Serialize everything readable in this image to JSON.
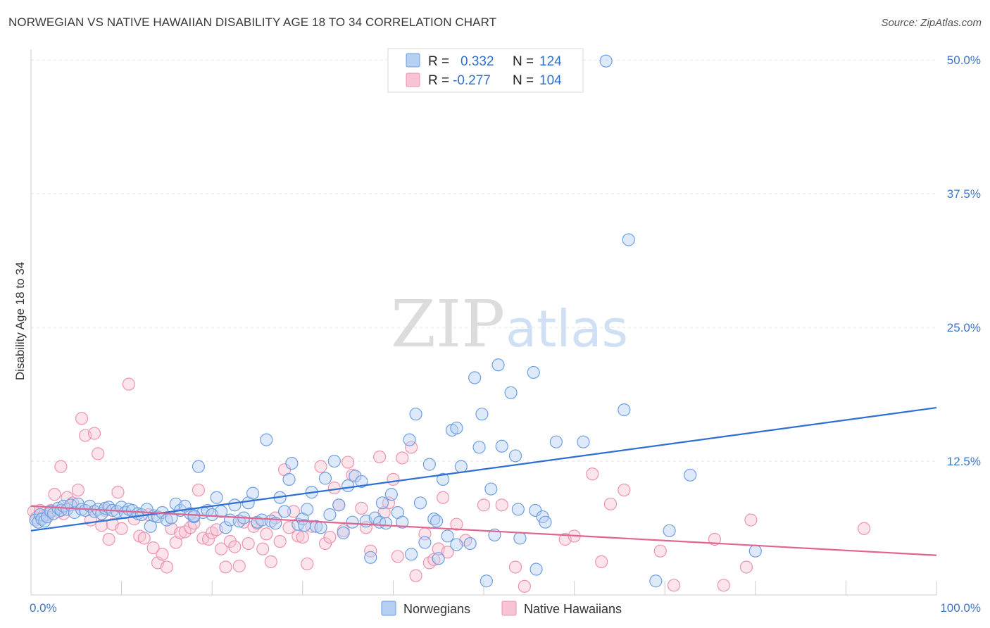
{
  "title": "NORWEGIAN VS NATIVE HAWAIIAN DISABILITY AGE 18 TO 34 CORRELATION CHART",
  "source": "Source: ZipAtlas.com",
  "watermark": {
    "zip": "ZIP",
    "atlas": "atlas"
  },
  "colors": {
    "blue_fill": "#b6d0f3",
    "blue_stroke": "#6e9fe0",
    "blue_line": "#2e6fd4",
    "pink_fill": "#f8c3d3",
    "pink_stroke": "#ec93b1",
    "pink_line": "#e0648f",
    "tick_text": "#3d76c9",
    "grid": "#e3e3e3"
  },
  "chart_data": {
    "type": "scatter",
    "title": "NORWEGIAN VS NATIVE HAWAIIAN DISABILITY AGE 18 TO 34 CORRELATION CHART",
    "xlabel": "",
    "ylabel": "Disability Age 18 to 34",
    "xlim": [
      0,
      100
    ],
    "ylim": [
      0,
      51
    ],
    "x_tick_labels": [
      "0.0%",
      "100.0%"
    ],
    "y_ticks": [
      12.5,
      25.0,
      37.5,
      50.0
    ],
    "y_tick_labels": [
      "12.5%",
      "25.0%",
      "37.5%",
      "50.0%"
    ],
    "grid": true,
    "legend_position": "top-center",
    "legend": [
      {
        "r_label": "R =",
        "r_value": "0.332",
        "n_label": "N =",
        "n_value": "124"
      },
      {
        "r_label": "R =",
        "r_value": "-0.277",
        "n_label": "N =",
        "n_value": "104"
      }
    ],
    "series": [
      {
        "name": "Norwegians",
        "color": "#b6d0f3",
        "trend": {
          "x": [
            0,
            100
          ],
          "y": [
            6.0,
            17.5
          ]
        },
        "points": [
          [
            0.5,
            7.0
          ],
          [
            0.8,
            6.8
          ],
          [
            1.0,
            7.5
          ],
          [
            1.2,
            7.1
          ],
          [
            1.5,
            6.9
          ],
          [
            1.8,
            7.3
          ],
          [
            2.2,
            7.8
          ],
          [
            2.5,
            7.6
          ],
          [
            3.0,
            8.1
          ],
          [
            3.3,
            7.9
          ],
          [
            3.6,
            8.3
          ],
          [
            4.0,
            8.0
          ],
          [
            4.4,
            8.4
          ],
          [
            4.8,
            7.7
          ],
          [
            5.2,
            8.5
          ],
          [
            5.6,
            8.0
          ],
          [
            6.0,
            7.9
          ],
          [
            6.5,
            8.3
          ],
          [
            7.0,
            7.8
          ],
          [
            7.4,
            8.0
          ],
          [
            7.8,
            7.6
          ],
          [
            8.2,
            8.1
          ],
          [
            8.6,
            8.2
          ],
          [
            9.0,
            7.9
          ],
          [
            9.5,
            7.8
          ],
          [
            10.0,
            8.2
          ],
          [
            10.4,
            7.7
          ],
          [
            10.8,
            8.0
          ],
          [
            11.2,
            7.9
          ],
          [
            11.8,
            7.6
          ],
          [
            12.2,
            7.5
          ],
          [
            12.8,
            8.0
          ],
          [
            13.2,
            6.4
          ],
          [
            13.6,
            7.4
          ],
          [
            14.0,
            7.3
          ],
          [
            14.5,
            7.7
          ],
          [
            15.0,
            7.0
          ],
          [
            15.5,
            7.2
          ],
          [
            16.0,
            8.5
          ],
          [
            16.5,
            7.9
          ],
          [
            17.0,
            8.3
          ],
          [
            17.6,
            7.6
          ],
          [
            18.0,
            7.3
          ],
          [
            18.5,
            12.0
          ],
          [
            19.0,
            7.7
          ],
          [
            19.5,
            7.9
          ],
          [
            20.0,
            7.5
          ],
          [
            20.5,
            9.1
          ],
          [
            21.0,
            7.8
          ],
          [
            21.5,
            6.3
          ],
          [
            22.0,
            7.0
          ],
          [
            22.5,
            8.4
          ],
          [
            23.0,
            6.9
          ],
          [
            23.5,
            7.2
          ],
          [
            24.0,
            8.6
          ],
          [
            24.5,
            9.5
          ],
          [
            25.0,
            6.8
          ],
          [
            25.5,
            7.0
          ],
          [
            26.0,
            14.5
          ],
          [
            26.5,
            6.9
          ],
          [
            27.0,
            6.7
          ],
          [
            27.5,
            9.1
          ],
          [
            28.0,
            7.8
          ],
          [
            28.5,
            10.8
          ],
          [
            28.8,
            12.3
          ],
          [
            29.5,
            6.6
          ],
          [
            30.0,
            7.1
          ],
          [
            30.5,
            8.0
          ],
          [
            31.0,
            9.6
          ],
          [
            31.5,
            6.4
          ],
          [
            32.0,
            6.3
          ],
          [
            32.5,
            10.9
          ],
          [
            33.0,
            7.5
          ],
          [
            33.5,
            12.5
          ],
          [
            34.0,
            8.4
          ],
          [
            34.5,
            5.8
          ],
          [
            35.0,
            10.2
          ],
          [
            35.5,
            6.8
          ],
          [
            35.8,
            11.1
          ],
          [
            36.5,
            10.6
          ],
          [
            37.0,
            6.9
          ],
          [
            37.5,
            3.5
          ],
          [
            38.0,
            7.2
          ],
          [
            38.5,
            6.8
          ],
          [
            38.8,
            8.6
          ],
          [
            39.2,
            6.7
          ],
          [
            39.8,
            9.4
          ],
          [
            40.5,
            7.7
          ],
          [
            41.0,
            6.8
          ],
          [
            41.8,
            14.5
          ],
          [
            42.0,
            3.8
          ],
          [
            42.5,
            16.9
          ],
          [
            43.0,
            8.6
          ],
          [
            43.5,
            4.9
          ],
          [
            44.0,
            12.2
          ],
          [
            44.5,
            7.1
          ],
          [
            45.0,
            3.4
          ],
          [
            45.5,
            10.8
          ],
          [
            46.0,
            5.5
          ],
          [
            46.5,
            15.4
          ],
          [
            47.0,
            15.6
          ],
          [
            47.5,
            12.0
          ],
          [
            47.0,
            4.7
          ],
          [
            48.5,
            4.8
          ],
          [
            49.0,
            20.3
          ],
          [
            49.5,
            13.8
          ],
          [
            49.8,
            16.9
          ],
          [
            50.3,
            1.3
          ],
          [
            50.8,
            9.9
          ],
          [
            51.2,
            5.6
          ],
          [
            51.6,
            21.5
          ],
          [
            52.0,
            13.9
          ],
          [
            53.0,
            18.9
          ],
          [
            53.5,
            13.0
          ],
          [
            53.8,
            8.0
          ],
          [
            54.0,
            5.3
          ],
          [
            55.5,
            20.8
          ],
          [
            55.8,
            2.4
          ],
          [
            55.7,
            7.9
          ],
          [
            56.5,
            7.3
          ],
          [
            56.8,
            6.8
          ],
          [
            58.0,
            14.3
          ],
          [
            61.0,
            14.3
          ],
          [
            65.5,
            17.3
          ],
          [
            66.0,
            33.2
          ],
          [
            69.0,
            1.3
          ],
          [
            70.5,
            6.0
          ],
          [
            72.8,
            11.2
          ],
          [
            80.0,
            4.1
          ],
          [
            60.0,
            50.0
          ],
          [
            63.5,
            49.9
          ],
          [
            18.0,
            7.4
          ],
          [
            30.2,
            6.5
          ],
          [
            44.8,
            6.9
          ]
        ]
      },
      {
        "name": "Native Hawaiians",
        "color": "#f8c3d3",
        "trend": {
          "x": [
            0,
            100
          ],
          "y": [
            8.3,
            3.7
          ]
        },
        "points": [
          [
            0.3,
            7.8
          ],
          [
            0.6,
            7.2
          ],
          [
            1.0,
            7.9
          ],
          [
            1.4,
            7.4
          ],
          [
            1.8,
            7.5
          ],
          [
            2.2,
            7.9
          ],
          [
            2.6,
            9.4
          ],
          [
            3.0,
            7.8
          ],
          [
            3.3,
            12.0
          ],
          [
            3.6,
            7.6
          ],
          [
            4.0,
            9.1
          ],
          [
            4.6,
            8.6
          ],
          [
            5.2,
            9.8
          ],
          [
            5.6,
            16.5
          ],
          [
            6.0,
            14.9
          ],
          [
            6.6,
            7.0
          ],
          [
            7.0,
            15.1
          ],
          [
            7.4,
            13.2
          ],
          [
            7.8,
            6.5
          ],
          [
            8.2,
            7.9
          ],
          [
            8.6,
            5.2
          ],
          [
            9.0,
            6.6
          ],
          [
            9.6,
            9.6
          ],
          [
            10.0,
            6.2
          ],
          [
            10.8,
            19.7
          ],
          [
            11.4,
            7.1
          ],
          [
            12.0,
            5.5
          ],
          [
            12.5,
            5.3
          ],
          [
            13.0,
            7.5
          ],
          [
            13.5,
            4.4
          ],
          [
            14.0,
            3.0
          ],
          [
            14.5,
            3.8
          ],
          [
            15.0,
            2.6
          ],
          [
            15.5,
            6.2
          ],
          [
            16.0,
            4.9
          ],
          [
            16.5,
            5.8
          ],
          [
            17.0,
            5.9
          ],
          [
            17.6,
            6.3
          ],
          [
            18.0,
            6.7
          ],
          [
            18.5,
            9.8
          ],
          [
            19.0,
            5.3
          ],
          [
            19.6,
            5.2
          ],
          [
            20.0,
            5.8
          ],
          [
            20.5,
            6.1
          ],
          [
            21.0,
            4.3
          ],
          [
            21.5,
            2.6
          ],
          [
            22.0,
            5.0
          ],
          [
            22.5,
            4.5
          ],
          [
            23.0,
            2.7
          ],
          [
            23.5,
            6.8
          ],
          [
            24.0,
            4.8
          ],
          [
            24.6,
            6.4
          ],
          [
            25.0,
            6.7
          ],
          [
            25.6,
            4.3
          ],
          [
            26.0,
            5.7
          ],
          [
            26.5,
            3.1
          ],
          [
            27.0,
            7.2
          ],
          [
            27.5,
            5.0
          ],
          [
            28.0,
            11.7
          ],
          [
            28.5,
            6.3
          ],
          [
            29.0,
            7.8
          ],
          [
            29.5,
            5.5
          ],
          [
            30.0,
            5.4
          ],
          [
            30.5,
            2.9
          ],
          [
            31.0,
            6.4
          ],
          [
            32.0,
            12.0
          ],
          [
            32.5,
            4.8
          ],
          [
            33.0,
            5.4
          ],
          [
            33.5,
            10.0
          ],
          [
            34.0,
            8.4
          ],
          [
            34.5,
            6.0
          ],
          [
            35.0,
            12.4
          ],
          [
            35.5,
            11.2
          ],
          [
            36.5,
            8.1
          ],
          [
            37.0,
            6.3
          ],
          [
            37.5,
            4.1
          ],
          [
            38.5,
            12.9
          ],
          [
            39.0,
            7.7
          ],
          [
            39.5,
            8.6
          ],
          [
            40.0,
            10.8
          ],
          [
            40.5,
            3.6
          ],
          [
            41.0,
            12.8
          ],
          [
            42.0,
            13.8
          ],
          [
            42.5,
            1.8
          ],
          [
            43.5,
            5.7
          ],
          [
            44.0,
            3.0
          ],
          [
            44.5,
            3.3
          ],
          [
            45.0,
            4.3
          ],
          [
            45.5,
            9.1
          ],
          [
            46.0,
            4.0
          ],
          [
            47.0,
            6.6
          ],
          [
            48.0,
            5.1
          ],
          [
            50.0,
            8.4
          ],
          [
            52.0,
            8.4
          ],
          [
            53.5,
            2.6
          ],
          [
            54.5,
            0.8
          ],
          [
            59.0,
            5.2
          ],
          [
            60.0,
            5.5
          ],
          [
            62.0,
            11.3
          ],
          [
            63.0,
            3.1
          ],
          [
            65.5,
            9.8
          ],
          [
            69.5,
            4.1
          ],
          [
            71.0,
            0.9
          ],
          [
            75.5,
            5.2
          ],
          [
            76.5,
            0.9
          ],
          [
            79.5,
            7.0
          ],
          [
            79.0,
            2.6
          ],
          [
            92.0,
            6.2
          ],
          [
            64.0,
            8.5
          ]
        ]
      }
    ]
  },
  "bottom_legend": [
    "Norwegians",
    "Native Hawaiians"
  ]
}
